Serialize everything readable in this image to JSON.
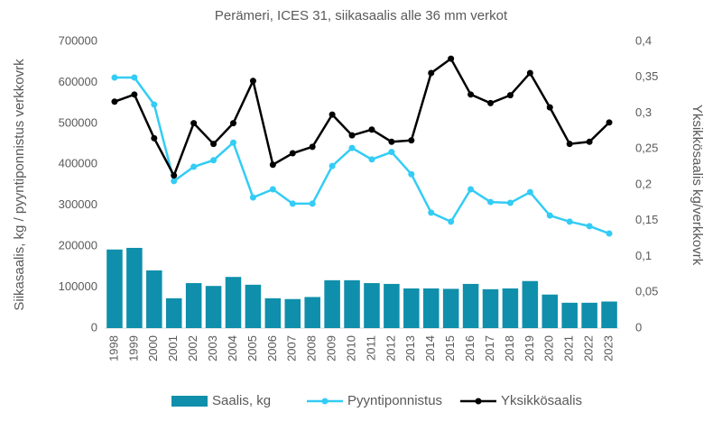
{
  "chart_data": {
    "type": "combo",
    "title": "Perämeri, ICES 31, siikasaalis alle 36 mm verkot",
    "y_label": "Siikasaalis, kg / pyyntiponnistus verkkovrk",
    "y2_label": "Yksikkösaalis kg/verkkovrk",
    "categories": [
      "1998",
      "1999",
      "2000",
      "2001",
      "2002",
      "2003",
      "2004",
      "2005",
      "2006",
      "2007",
      "2008",
      "2009",
      "2010",
      "2011",
      "2012",
      "2013",
      "2014",
      "2015",
      "2016",
      "2017",
      "2018",
      "2019",
      "2020",
      "2021",
      "2022",
      "2023"
    ],
    "series": [
      {
        "name": "Saalis, kg",
        "type": "bar",
        "color": "#0f8fab",
        "values": [
          192000,
          196000,
          141000,
          73000,
          110000,
          103000,
          125000,
          106000,
          73000,
          71000,
          76000,
          117000,
          117000,
          110000,
          108000,
          97000,
          97000,
          96000,
          108000,
          95000,
          97000,
          115000,
          82000,
          62000,
          62000,
          65000
        ]
      },
      {
        "name": "Pyyntiponnistus",
        "type": "line",
        "color": "#33ccf5",
        "values": [
          612000,
          612000,
          546000,
          359000,
          394000,
          410000,
          453000,
          319000,
          339000,
          304000,
          304000,
          396000,
          440000,
          412000,
          430000,
          376000,
          282000,
          260000,
          339000,
          308000,
          306000,
          332000,
          275000,
          260000,
          249000,
          231000
        ]
      },
      {
        "name": "Yksikkösaalis",
        "type": "line",
        "color": "#000000",
        "axis": "y2",
        "values": [
          0.316,
          0.326,
          0.265,
          0.213,
          0.286,
          0.257,
          0.286,
          0.345,
          0.228,
          0.244,
          0.253,
          0.298,
          0.269,
          0.277,
          0.26,
          0.262,
          0.356,
          0.376,
          0.326,
          0.314,
          0.325,
          0.356,
          0.308,
          0.257,
          0.26,
          0.287
        ]
      }
    ],
    "ylim": [
      0,
      700000
    ],
    "yticks": [
      0,
      100000,
      200000,
      300000,
      400000,
      500000,
      600000,
      700000
    ],
    "y2lim": [
      0,
      0.4
    ],
    "y2ticks": [
      0,
      {
        "value": 0.05,
        "label": "0,05"
      },
      {
        "value": 0.1,
        "label": "0,1"
      },
      {
        "value": 0.15,
        "label": "0,15"
      },
      {
        "value": 0.2,
        "label": "0,2"
      },
      {
        "value": 0.25,
        "label": "0,25"
      },
      {
        "value": 0.3,
        "label": "0,3"
      },
      {
        "value": 0.35,
        "label": "0,35"
      },
      {
        "value": 0.4,
        "label": "0,4"
      }
    ],
    "grid": false,
    "legend": "bottom"
  }
}
